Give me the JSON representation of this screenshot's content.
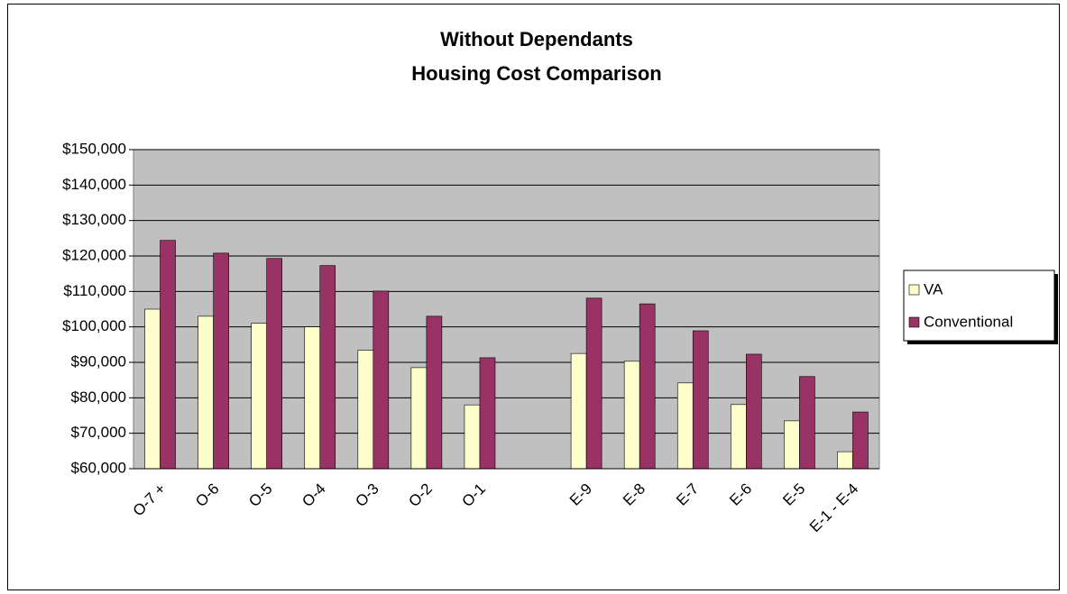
{
  "chart_data": {
    "type": "bar",
    "title": [
      "Without Dependants",
      "Housing Cost Comparison"
    ],
    "categories": [
      "O-7 +",
      "O-6",
      "O-5",
      "O-4",
      "O-3",
      "O-2",
      "O-1",
      null,
      "E-9",
      "E-8",
      "E-7",
      "E-6",
      "E-5",
      "E-1 - E-4"
    ],
    "series": [
      {
        "name": "VA",
        "color": "#ffffcc",
        "values": [
          105000,
          103000,
          101000,
          100000,
          93400,
          88500,
          78000,
          null,
          92500,
          90300,
          84200,
          78100,
          73500,
          64800
        ]
      },
      {
        "name": "Conventional",
        "color": "#993366",
        "values": [
          124400,
          120800,
          119300,
          117300,
          110100,
          103000,
          91300,
          null,
          108100,
          106500,
          98900,
          92300,
          86000,
          76000
        ]
      }
    ],
    "ylim": [
      60000,
      150000
    ],
    "yticks": [
      {
        "value": 60000,
        "label": "$60,000"
      },
      {
        "value": 70000,
        "label": "$70,000"
      },
      {
        "value": 80000,
        "label": "$80,000"
      },
      {
        "value": 90000,
        "label": "$90,000"
      },
      {
        "value": 100000,
        "label": "$100,000"
      },
      {
        "value": 110000,
        "label": "$110,000"
      },
      {
        "value": 120000,
        "label": "$120,000"
      },
      {
        "value": 130000,
        "label": "$130,000"
      },
      {
        "value": 140000,
        "label": "$140,000"
      },
      {
        "value": 150000,
        "label": "$150,000"
      }
    ],
    "grid": true,
    "legend": "right"
  }
}
